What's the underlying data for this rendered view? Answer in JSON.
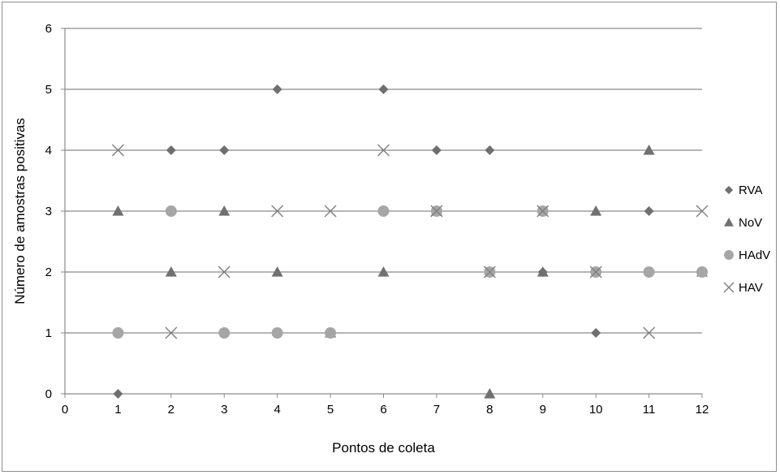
{
  "chart_data": {
    "type": "scatter",
    "title": "",
    "xlabel": "Pontos de coleta",
    "ylabel": "Número de amostras positivas",
    "xlim": [
      0,
      12
    ],
    "ylim": [
      0,
      6
    ],
    "x_ticks": [
      "0",
      "1",
      "2",
      "3",
      "4",
      "5",
      "6",
      "7",
      "8",
      "9",
      "10",
      "11",
      "12"
    ],
    "y_ticks": [
      "0",
      "1",
      "2",
      "3",
      "4",
      "5",
      "6"
    ],
    "horizontal_gridlines": true,
    "legend_position": "right",
    "series": [
      {
        "name": "RVA",
        "marker": "diamond",
        "color": "#6f6f6f",
        "x": [
          1,
          2,
          3,
          4,
          5,
          6,
          7,
          8,
          9,
          10,
          11,
          12
        ],
        "y": [
          0,
          4,
          4,
          5,
          1,
          5,
          4,
          4,
          2,
          1,
          3,
          2
        ]
      },
      {
        "name": "NoV",
        "marker": "triangle",
        "color": "#707070",
        "x": [
          1,
          2,
          3,
          4,
          5,
          6,
          7,
          8,
          9,
          10,
          11,
          12
        ],
        "y": [
          3,
          2,
          3,
          2,
          1,
          2,
          3,
          0,
          2,
          3,
          4,
          2
        ]
      },
      {
        "name": "HAdV",
        "marker": "circle",
        "color": "#a6a6a6",
        "x": [
          1,
          2,
          3,
          4,
          5,
          6,
          7,
          8,
          9,
          10,
          11,
          12
        ],
        "y": [
          1,
          3,
          1,
          1,
          1,
          3,
          3,
          2,
          3,
          2,
          2,
          2
        ]
      },
      {
        "name": "HAV",
        "marker": "x",
        "color": "#7f7f7f",
        "x": [
          1,
          2,
          3,
          4,
          5,
          6,
          7,
          8,
          9,
          10,
          11,
          12
        ],
        "y": [
          4,
          1,
          2,
          3,
          3,
          4,
          3,
          2,
          3,
          2,
          1,
          3
        ]
      }
    ]
  }
}
